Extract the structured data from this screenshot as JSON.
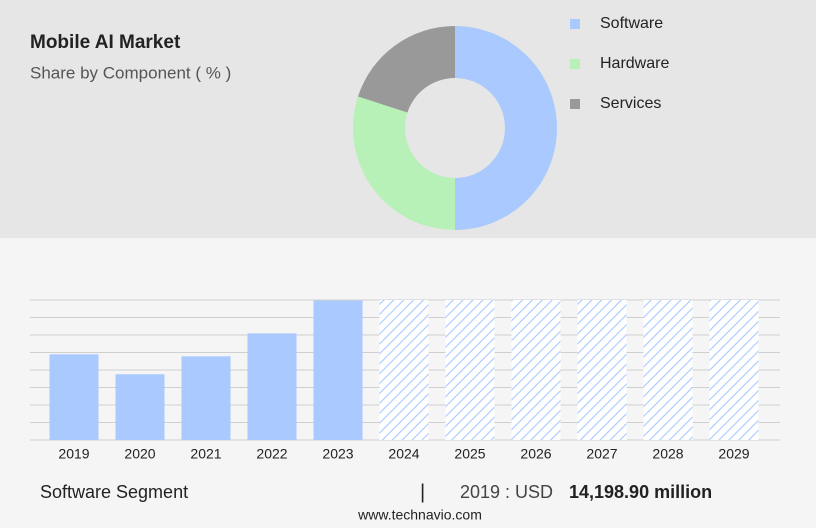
{
  "chart_data": [
    {
      "type": "donut",
      "title": "Mobile AI Market",
      "subtitle": "Share by Component ( % )",
      "categories": [
        "Software",
        "Hardware",
        "Services"
      ],
      "values": [
        50,
        30,
        20
      ],
      "colors": [
        "#a9c9ff",
        "#b7f1b7",
        "#999999"
      ]
    },
    {
      "type": "bar",
      "categories": [
        "2019",
        "2020",
        "2021",
        "2022",
        "2023",
        "2024",
        "2025",
        "2026",
        "2027",
        "2028",
        "2029"
      ],
      "values": [
        14198.9,
        10897,
        13868,
        17666,
        23115,
        null,
        null,
        null,
        null,
        null,
        null
      ],
      "color": "#a9c9ff",
      "forecast_color": "#a9c9ff",
      "ylim": [
        0,
        23200
      ],
      "yticks": [
        0,
        2900,
        5800,
        8700,
        11600,
        14500,
        17400,
        20300,
        23200
      ],
      "grid": true
    }
  ],
  "footer": {
    "segment": "Software Segment",
    "separator": "|",
    "year_label": "2019 : USD",
    "value_label": "14,198.90 million",
    "source": "www.technavio.com"
  }
}
